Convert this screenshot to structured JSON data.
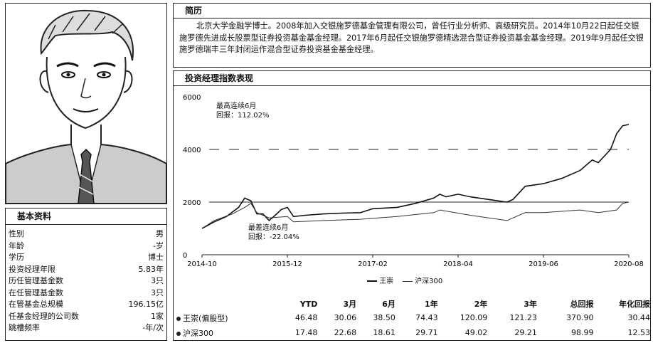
{
  "bio": {
    "header": "简历",
    "text": "北京大学金融学博士。2008年加入交银施罗德基金管理有限公司，曾任行业分析师、高级研究员。2014年10月22日起任交银施罗德先进成长股票型证券投资基金基金经理。2017年6月起任交银施罗德精选混合型证券投资基金基金经理。2019年9月起任交银施罗德瑞丰三年封闭运作混合型证券投资基金基金经理。"
  },
  "profile": {
    "header": "基本资料",
    "rows": [
      {
        "label": "性别",
        "value": "男"
      },
      {
        "label": "年龄",
        "value": "-岁"
      },
      {
        "label": "学历",
        "value": "博士"
      },
      {
        "label": "投资经理年限",
        "value": "5.83年"
      },
      {
        "label": "历任管理基金数",
        "value": "3只"
      },
      {
        "label": "在任管理基金数",
        "value": "3只"
      },
      {
        "label": "在管基金总规模",
        "value": "196.15亿"
      },
      {
        "label": "任基金经理的公司数",
        "value": "1家"
      },
      {
        "label": "跳槽频率",
        "value": "-年/次"
      }
    ]
  },
  "performance": {
    "header": "投资经理指数表现",
    "annotations": {
      "max_line1": "最高连续6月",
      "max_line2": "回报：112.02%",
      "min_line1": "最差连续6月",
      "min_line2": "回报：-22.04%"
    },
    "legend": [
      "王崇",
      "沪深300"
    ]
  },
  "chart_data": {
    "type": "line",
    "title": "投资经理指数表现",
    "x_ticks": [
      "2014-10",
      "2015-12",
      "2017-02",
      "2018-04",
      "2019-06",
      "2020-08"
    ],
    "y_ticks": [
      0,
      2000,
      4000,
      6000
    ],
    "ylim": [
      0,
      6000
    ],
    "xlim": [
      "2014-10",
      "2020-08"
    ],
    "grid": false,
    "legend_position": "bottom",
    "series": [
      {
        "name": "王崇",
        "points": [
          [
            "2014-10",
            1000
          ],
          [
            "2014-12",
            1250
          ],
          [
            "2015-02",
            1450
          ],
          [
            "2015-04",
            1800
          ],
          [
            "2015-05",
            2150
          ],
          [
            "2015-06",
            2050
          ],
          [
            "2015-07",
            1550
          ],
          [
            "2015-08",
            1550
          ],
          [
            "2015-09",
            1300
          ],
          [
            "2015-10",
            1500
          ],
          [
            "2015-11",
            1720
          ],
          [
            "2015-12",
            1800
          ],
          [
            "2016-01",
            1450
          ],
          [
            "2016-03",
            1500
          ],
          [
            "2016-06",
            1550
          ],
          [
            "2016-09",
            1580
          ],
          [
            "2016-12",
            1600
          ],
          [
            "2017-02",
            1750
          ],
          [
            "2017-06",
            1800
          ],
          [
            "2017-09",
            1950
          ],
          [
            "2017-12",
            2150
          ],
          [
            "2018-01",
            2300
          ],
          [
            "2018-02",
            2200
          ],
          [
            "2018-04",
            2300
          ],
          [
            "2018-06",
            2200
          ],
          [
            "2018-09",
            2100
          ],
          [
            "2018-12",
            2000
          ],
          [
            "2019-01",
            2100
          ],
          [
            "2019-03",
            2600
          ],
          [
            "2019-06",
            2700
          ],
          [
            "2019-09",
            2900
          ],
          [
            "2019-12",
            3200
          ],
          [
            "2020-02",
            3600
          ],
          [
            "2020-03",
            3500
          ],
          [
            "2020-05",
            4000
          ],
          [
            "2020-06",
            4600
          ],
          [
            "2020-07",
            4900
          ],
          [
            "2020-08",
            4950
          ]
        ]
      },
      {
        "name": "沪深300",
        "points": [
          [
            "2014-10",
            1000
          ],
          [
            "2014-12",
            1300
          ],
          [
            "2015-03",
            1550
          ],
          [
            "2015-05",
            1800
          ],
          [
            "2015-06",
            1950
          ],
          [
            "2015-07",
            1600
          ],
          [
            "2015-08",
            1500
          ],
          [
            "2015-09",
            1400
          ],
          [
            "2015-12",
            1450
          ],
          [
            "2016-01",
            1250
          ],
          [
            "2016-06",
            1300
          ],
          [
            "2016-12",
            1350
          ],
          [
            "2017-06",
            1450
          ],
          [
            "2017-12",
            1600
          ],
          [
            "2018-01",
            1700
          ],
          [
            "2018-06",
            1500
          ],
          [
            "2018-12",
            1300
          ],
          [
            "2019-03",
            1600
          ],
          [
            "2019-06",
            1600
          ],
          [
            "2019-12",
            1700
          ],
          [
            "2020-03",
            1600
          ],
          [
            "2020-06",
            1700
          ],
          [
            "2020-07",
            1950
          ],
          [
            "2020-08",
            2000
          ]
        ]
      }
    ]
  },
  "returns_table": {
    "columns": [
      "YTD",
      "3月",
      "6月",
      "1年",
      "2年",
      "3年",
      "总回报",
      "年化回报"
    ],
    "rows": [
      {
        "name": "王崇(偏股型)",
        "values": [
          "46.48",
          "30.06",
          "38.50",
          "74.43",
          "120.09",
          "121.23",
          "370.90",
          "30.44"
        ]
      },
      {
        "name": "沪深300",
        "values": [
          "17.48",
          "22.68",
          "18.61",
          "29.71",
          "49.02",
          "29.21",
          "98.99",
          "12.53"
        ]
      }
    ]
  }
}
